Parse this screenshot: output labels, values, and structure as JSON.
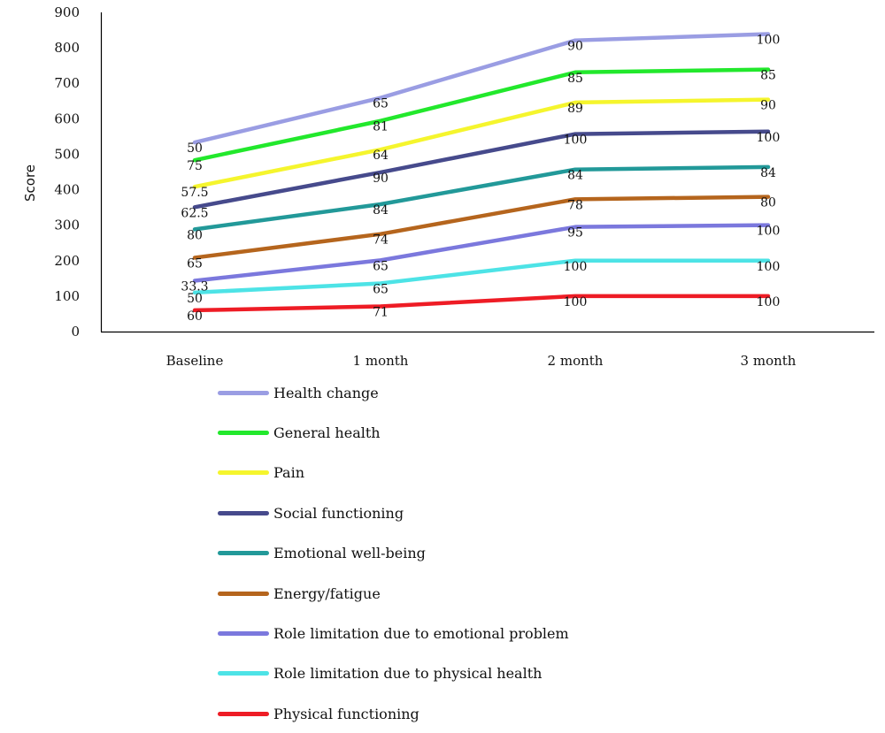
{
  "chart_data": {
    "type": "line",
    "stacked": true,
    "title": "",
    "xlabel": "",
    "ylabel": "Score",
    "ylim": [
      0,
      900
    ],
    "yticks": [
      0,
      100,
      200,
      300,
      400,
      500,
      600,
      700,
      800,
      900
    ],
    "grid": false,
    "legend_position": "bottom",
    "categories": [
      "Baseline",
      "1 month",
      "2 month",
      "3 month"
    ],
    "series": [
      {
        "name": "Physical functioning",
        "color": "#ee1c25",
        "values": [
          60,
          71,
          100,
          100
        ],
        "labels": [
          "60",
          "71",
          "100",
          "100"
        ]
      },
      {
        "name": "Role limitation due to physical health",
        "color": "#4de3e6",
        "values": [
          50,
          65,
          100,
          100
        ],
        "labels": [
          "50",
          "65",
          "100",
          "100"
        ]
      },
      {
        "name": "Role limitation due to emotional problem",
        "color": "#7b78dd",
        "values": [
          33.3,
          65,
          95,
          100
        ],
        "labels": [
          "33.3",
          "65",
          "95",
          "100"
        ]
      },
      {
        "name": "Energy/fatigue",
        "color": "#b5651d",
        "values": [
          65,
          74,
          78,
          80
        ],
        "labels": [
          "65",
          "74",
          "78",
          "80"
        ]
      },
      {
        "name": "Emotional well-being",
        "color": "#229999",
        "values": [
          80,
          84,
          84,
          84
        ],
        "labels": [
          "80",
          "84",
          "84",
          "84"
        ]
      },
      {
        "name": "Social functioning",
        "color": "#464a8c",
        "values": [
          62.5,
          90,
          100,
          100
        ],
        "labels": [
          "62.5",
          "90",
          "100",
          "100"
        ]
      },
      {
        "name": "Pain",
        "color": "#f5f52d",
        "values": [
          57.5,
          64,
          89,
          90
        ],
        "labels": [
          "57.5",
          "64",
          "89",
          "90"
        ]
      },
      {
        "name": "General health",
        "color": "#22e82c",
        "values": [
          75,
          81,
          85,
          85
        ],
        "labels": [
          "75",
          "81",
          "85",
          "85"
        ]
      },
      {
        "name": "Health change",
        "color": "#9a9de3",
        "values": [
          50,
          65,
          90,
          100
        ],
        "labels": [
          "50",
          "65",
          "90",
          "100"
        ]
      }
    ]
  }
}
